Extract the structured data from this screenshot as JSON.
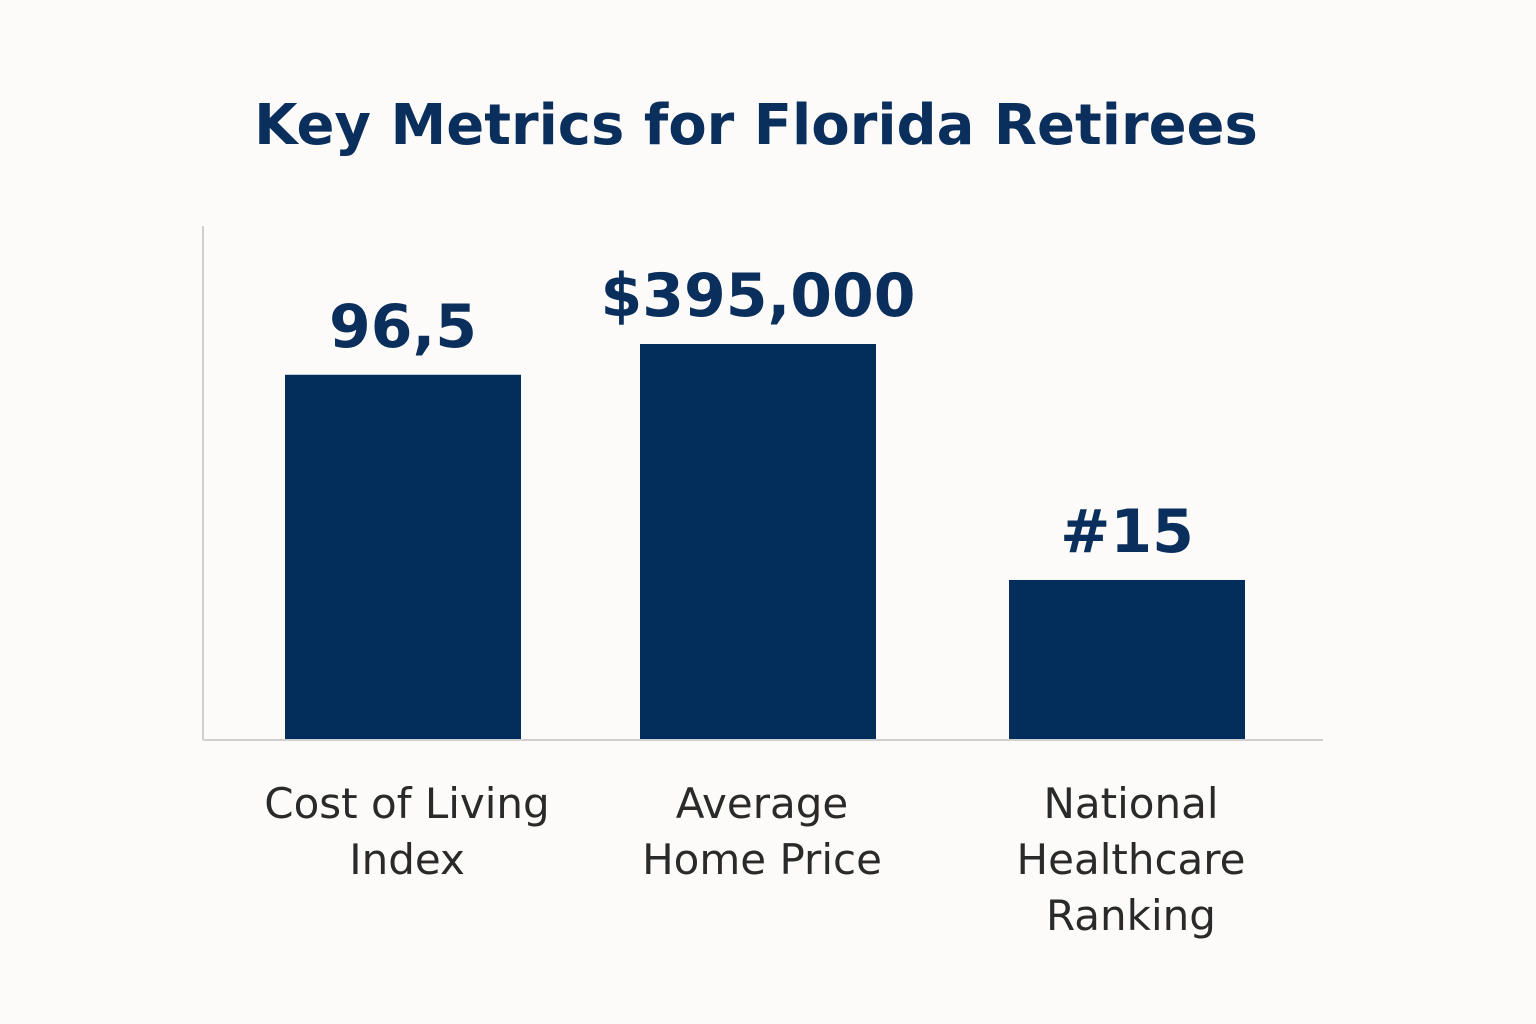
{
  "chart_data": {
    "type": "bar",
    "title": "Key Metrics for Florida Retirees",
    "xlabel": "",
    "ylabel": "",
    "categories": [
      [
        "Cost of Living",
        "Index"
      ],
      [
        "Average",
        "Home Price"
      ],
      [
        "National",
        "Healthcare",
        "Ranking"
      ]
    ],
    "value_labels": [
      "96,5",
      "$395,000",
      "#15"
    ],
    "values": [
      71,
      77,
      31
    ],
    "ylim": [
      0,
      100
    ],
    "grid": false,
    "bar_color": "#032e5c",
    "axis_color": "#d0d0d0"
  }
}
